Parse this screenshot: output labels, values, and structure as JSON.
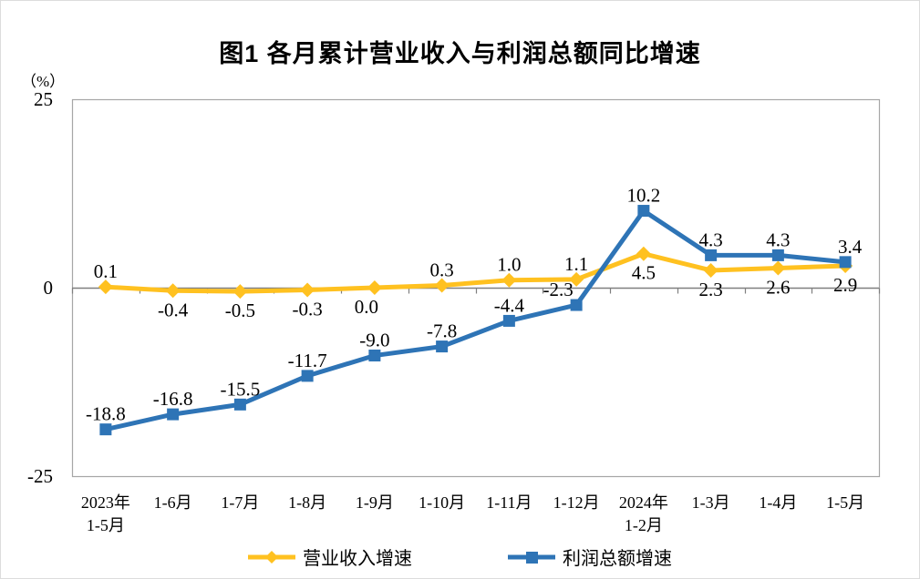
{
  "chart_data": {
    "type": "line",
    "title": "图1  各月累计营业收入与利润总额同比增速",
    "unit_label": "（%）",
    "categories": [
      "2023年\n1-5月",
      "1-6月",
      "1-7月",
      "1-8月",
      "1-9月",
      "1-10月",
      "1-11月",
      "1-12月",
      "2024年\n1-2月",
      "1-3月",
      "1-4月",
      "1-5月"
    ],
    "y_axis": {
      "min": -25,
      "max": 25,
      "ticks": [
        25,
        0,
        -25
      ]
    },
    "grid": false,
    "legend_position": "bottom",
    "axis_color": "#a6a6a6",
    "zero_line_color": "#7f7f7f",
    "text_color": "#000000",
    "series": [
      {
        "id": "revenue-growth",
        "name": "营业收入增速",
        "color": "#FFC120",
        "marker": "diamond",
        "values": [
          0.1,
          -0.4,
          -0.5,
          -0.3,
          0.0,
          0.3,
          1.0,
          1.1,
          4.5,
          2.3,
          2.6,
          2.9
        ],
        "label_side": [
          "above",
          "below",
          "below",
          "below",
          "below",
          "above",
          "above",
          "above",
          "below",
          "below",
          "below",
          "below"
        ],
        "label_dx": [
          0,
          0,
          0,
          0,
          -9,
          0,
          0,
          0,
          0,
          0,
          0,
          0
        ]
      },
      {
        "id": "profit-growth",
        "name": "利润总额增速",
        "color": "#2E74B6",
        "marker": "square",
        "values": [
          -18.8,
          -16.8,
          -15.5,
          -11.7,
          -9.0,
          -7.8,
          -4.4,
          -2.3,
          10.2,
          4.3,
          4.3,
          3.4
        ],
        "label_side": [
          "above",
          "above",
          "above",
          "above",
          "above",
          "above",
          "above",
          "above",
          "above",
          "above",
          "above",
          "above"
        ],
        "label_dx": [
          0,
          0,
          0,
          0,
          0,
          0,
          0,
          -20,
          0,
          0,
          0,
          5
        ]
      }
    ]
  }
}
